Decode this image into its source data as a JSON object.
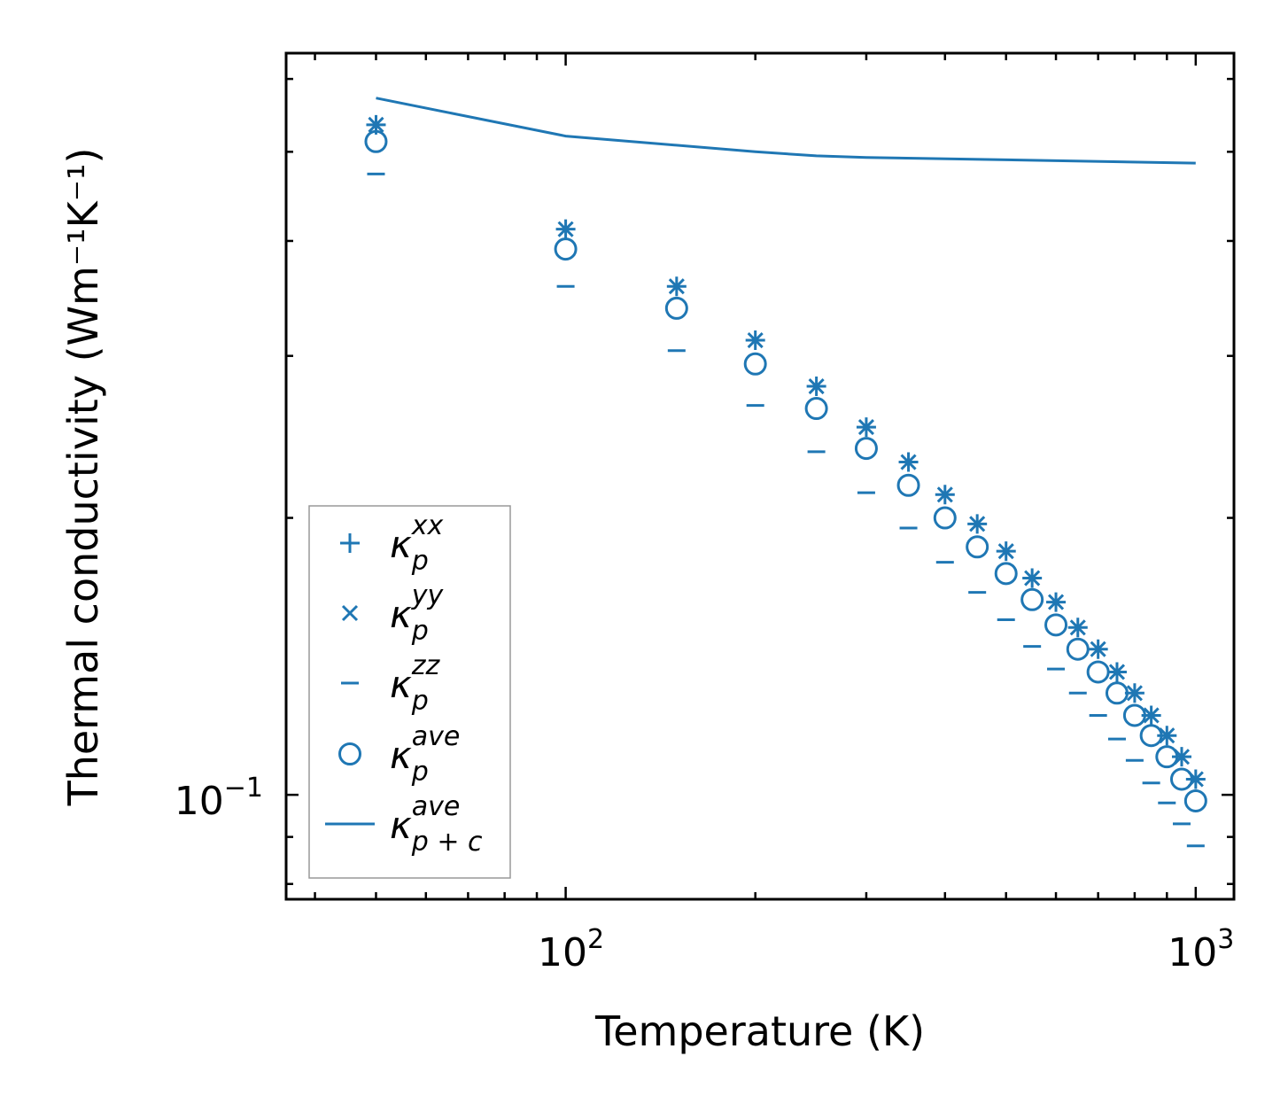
{
  "chart_data": {
    "type": "scatter",
    "xscale": "log",
    "yscale": "log",
    "xlabel": "Temperature (K)",
    "ylabel": "Thermal conductivity (Wm⁻¹K⁻¹)",
    "xlim": [
      36,
      1150
    ],
    "ylim": [
      0.077,
      0.64
    ],
    "x_tick_labels": [
      {
        "value": 100,
        "base": "10",
        "exp": "2"
      },
      {
        "value": 1000,
        "base": "10",
        "exp": "3"
      }
    ],
    "y_tick_labels": [
      {
        "value": 0.1,
        "base": "10",
        "exp": "−1"
      }
    ],
    "color": "#1f77b4",
    "x": [
      50,
      100,
      150,
      200,
      250,
      300,
      350,
      400,
      450,
      500,
      550,
      600,
      650,
      700,
      750,
      800,
      850,
      900,
      950,
      1000
    ],
    "series": [
      {
        "name": "kappa_p_xx",
        "marker": "plus",
        "values": [
          0.535,
          0.412,
          0.357,
          0.312,
          0.278,
          0.251,
          0.23,
          0.212,
          0.197,
          0.184,
          0.172,
          0.162,
          0.152,
          0.144,
          0.136,
          0.129,
          0.122,
          0.116,
          0.11,
          0.104
        ]
      },
      {
        "name": "kappa_p_yy",
        "marker": "x",
        "values": [
          0.535,
          0.412,
          0.357,
          0.312,
          0.278,
          0.251,
          0.23,
          0.212,
          0.197,
          0.184,
          0.172,
          0.162,
          0.152,
          0.144,
          0.136,
          0.129,
          0.122,
          0.116,
          0.11,
          0.104
        ]
      },
      {
        "name": "kappa_p_zz",
        "marker": "hline",
        "values": [
          0.473,
          0.357,
          0.304,
          0.265,
          0.236,
          0.213,
          0.195,
          0.179,
          0.166,
          0.155,
          0.145,
          0.137,
          0.129,
          0.122,
          0.115,
          0.109,
          0.103,
          0.098,
          0.093,
          0.088
        ]
      },
      {
        "name": "kappa_p_ave",
        "marker": "circle",
        "values": [
          0.513,
          0.392,
          0.338,
          0.294,
          0.263,
          0.238,
          0.217,
          0.2,
          0.186,
          0.174,
          0.163,
          0.153,
          0.144,
          0.136,
          0.129,
          0.122,
          0.116,
          0.11,
          0.104,
          0.0985
        ]
      },
      {
        "name": "kappa_p+c_ave",
        "marker": "line",
        "values": [
          0.572,
          0.52,
          null,
          0.5,
          0.495,
          0.493,
          null,
          null,
          null,
          null,
          null,
          null,
          null,
          null,
          null,
          null,
          null,
          null,
          null,
          0.486
        ]
      }
    ],
    "legend": {
      "position": "lower-left",
      "entries": [
        {
          "symbol": "κ",
          "sub": "p",
          "sup": "xx",
          "marker": "plus"
        },
        {
          "symbol": "κ",
          "sub": "p",
          "sup": "yy",
          "marker": "x"
        },
        {
          "symbol": "κ",
          "sub": "p",
          "sup": "zz",
          "marker": "hline"
        },
        {
          "symbol": "κ",
          "sub": "p",
          "sup": "ave",
          "marker": "circle"
        },
        {
          "symbol": "κ",
          "sub": "p + c",
          "sup": "ave",
          "marker": "line"
        }
      ]
    }
  }
}
